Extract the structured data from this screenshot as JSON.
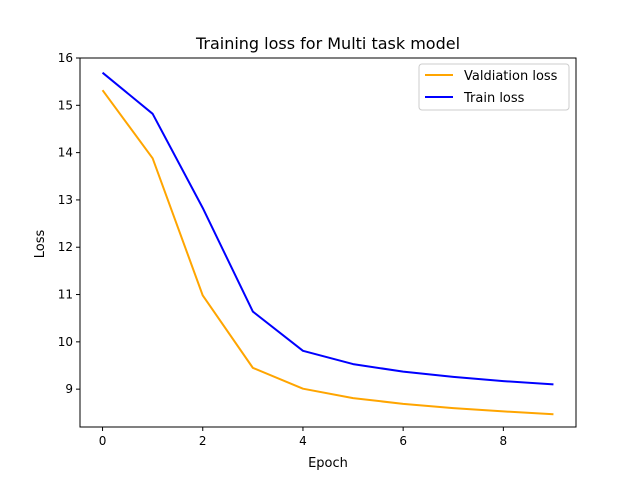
{
  "chart_data": {
    "type": "line",
    "title": "Training loss for Multi task model",
    "xlabel": "Epoch",
    "ylabel": "Loss",
    "xlim": [
      -0.45,
      9.45
    ],
    "ylim": [
      8.2,
      16.0
    ],
    "xticks": [
      0,
      2,
      4,
      6,
      8
    ],
    "yticks": [
      9,
      10,
      11,
      12,
      13,
      14,
      15,
      16
    ],
    "grid": false,
    "legend_position": "top-right",
    "x": [
      0,
      1,
      2,
      3,
      4,
      5,
      6,
      7,
      8,
      9
    ],
    "series": [
      {
        "name": "Valdiation loss",
        "color": "#ffa500",
        "values": [
          15.32,
          13.88,
          10.98,
          9.45,
          9.01,
          8.81,
          8.69,
          8.6,
          8.53,
          8.47
        ]
      },
      {
        "name": "Train loss",
        "color": "#0000ff",
        "values": [
          15.69,
          14.82,
          12.83,
          10.64,
          9.81,
          9.53,
          9.37,
          9.26,
          9.17,
          9.1
        ]
      }
    ]
  }
}
